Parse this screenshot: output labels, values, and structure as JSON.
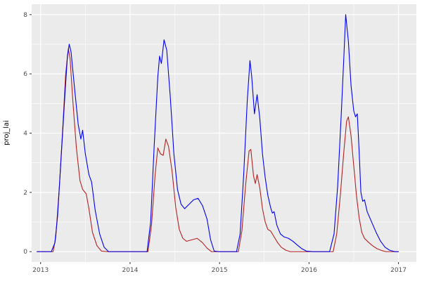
{
  "figure": {
    "background": "#FFFFFF",
    "panel_background": "#EBEBEB",
    "grid_major_color": "#FFFFFF",
    "grid_minor_color": "#FFFFFF",
    "axis_text_color": "#4D4D4D",
    "axis_title_color": "#000000",
    "tick_color": "#333333"
  },
  "chart_data": {
    "type": "line",
    "title": "",
    "xlabel": "",
    "ylabel": "proj_lai",
    "xlim": [
      2012.9,
      2017.2
    ],
    "ylim": [
      -0.35,
      8.35
    ],
    "x_ticks": [
      2013,
      2014,
      2015,
      2016,
      2017
    ],
    "x_tick_labels": [
      "2013",
      "2014",
      "2015",
      "2016",
      "2017"
    ],
    "x_minor_ticks": [
      2013.5,
      2014.5,
      2015.5,
      2016.5
    ],
    "y_ticks": [
      0,
      2,
      4,
      6,
      8
    ],
    "y_tick_labels": [
      "0",
      "2",
      "4",
      "6",
      "8"
    ],
    "y_minor_ticks": [
      1,
      3,
      5,
      7
    ],
    "grid": true,
    "legend": "none",
    "series": [
      {
        "name": "red-line",
        "color": "#B22222",
        "width": 1.1,
        "points": [
          [
            2012.96,
            0
          ],
          [
            2013.08,
            0
          ],
          [
            2013.14,
            0
          ],
          [
            2013.17,
            0.5
          ],
          [
            2013.21,
            2.2
          ],
          [
            2013.25,
            4.3
          ],
          [
            2013.28,
            6.0
          ],
          [
            2013.31,
            6.85
          ],
          [
            2013.33,
            6.5
          ],
          [
            2013.36,
            5.1
          ],
          [
            2013.4,
            3.5
          ],
          [
            2013.44,
            2.4
          ],
          [
            2013.47,
            2.1
          ],
          [
            2013.51,
            1.95
          ],
          [
            2013.54,
            1.45
          ],
          [
            2013.58,
            0.65
          ],
          [
            2013.63,
            0.2
          ],
          [
            2013.68,
            0.02
          ],
          [
            2013.75,
            0
          ],
          [
            2014.0,
            0
          ],
          [
            2014.15,
            0
          ],
          [
            2014.2,
            0
          ],
          [
            2014.24,
            0.9
          ],
          [
            2014.28,
            2.6
          ],
          [
            2014.31,
            3.5
          ],
          [
            2014.34,
            3.3
          ],
          [
            2014.37,
            3.25
          ],
          [
            2014.4,
            3.8
          ],
          [
            2014.43,
            3.55
          ],
          [
            2014.47,
            2.7
          ],
          [
            2014.51,
            1.5
          ],
          [
            2014.55,
            0.75
          ],
          [
            2014.59,
            0.45
          ],
          [
            2014.63,
            0.35
          ],
          [
            2014.69,
            0.4
          ],
          [
            2014.75,
            0.45
          ],
          [
            2014.81,
            0.3
          ],
          [
            2014.86,
            0.12
          ],
          [
            2014.91,
            0
          ],
          [
            2015.0,
            0
          ],
          [
            2015.15,
            0
          ],
          [
            2015.21,
            0
          ],
          [
            2015.25,
            0.7
          ],
          [
            2015.29,
            2.2
          ],
          [
            2015.33,
            3.4
          ],
          [
            2015.35,
            3.45
          ],
          [
            2015.38,
            2.55
          ],
          [
            2015.4,
            2.3
          ],
          [
            2015.42,
            2.6
          ],
          [
            2015.45,
            2.15
          ],
          [
            2015.48,
            1.45
          ],
          [
            2015.51,
            1.0
          ],
          [
            2015.54,
            0.75
          ],
          [
            2015.57,
            0.7
          ],
          [
            2015.61,
            0.5
          ],
          [
            2015.65,
            0.3
          ],
          [
            2015.69,
            0.15
          ],
          [
            2015.74,
            0.05
          ],
          [
            2015.79,
            0
          ],
          [
            2016.0,
            0
          ],
          [
            2016.2,
            0
          ],
          [
            2016.27,
            0
          ],
          [
            2016.31,
            0.6
          ],
          [
            2016.35,
            1.9
          ],
          [
            2016.39,
            3.4
          ],
          [
            2016.42,
            4.4
          ],
          [
            2016.44,
            4.55
          ],
          [
            2016.47,
            3.9
          ],
          [
            2016.5,
            2.9
          ],
          [
            2016.53,
            1.9
          ],
          [
            2016.56,
            1.15
          ],
          [
            2016.59,
            0.65
          ],
          [
            2016.62,
            0.45
          ],
          [
            2016.66,
            0.33
          ],
          [
            2016.71,
            0.2
          ],
          [
            2016.76,
            0.1
          ],
          [
            2016.81,
            0.04
          ],
          [
            2016.86,
            0
          ],
          [
            2017.0,
            0
          ]
        ]
      },
      {
        "name": "blue-line",
        "color": "#0000EE",
        "width": 1.1,
        "points": [
          [
            2012.96,
            0
          ],
          [
            2013.05,
            0
          ],
          [
            2013.12,
            0
          ],
          [
            2013.16,
            0.3
          ],
          [
            2013.19,
            1.2
          ],
          [
            2013.23,
            3.2
          ],
          [
            2013.27,
            5.2
          ],
          [
            2013.3,
            6.6
          ],
          [
            2013.32,
            7.0
          ],
          [
            2013.34,
            6.75
          ],
          [
            2013.38,
            5.5
          ],
          [
            2013.42,
            4.3
          ],
          [
            2013.45,
            3.8
          ],
          [
            2013.47,
            4.1
          ],
          [
            2013.5,
            3.3
          ],
          [
            2013.54,
            2.6
          ],
          [
            2013.57,
            2.35
          ],
          [
            2013.61,
            1.4
          ],
          [
            2013.66,
            0.6
          ],
          [
            2013.71,
            0.15
          ],
          [
            2013.76,
            0
          ],
          [
            2013.95,
            0
          ],
          [
            2014.1,
            0
          ],
          [
            2014.19,
            0
          ],
          [
            2014.23,
            1.0
          ],
          [
            2014.27,
            3.6
          ],
          [
            2014.31,
            5.9
          ],
          [
            2014.33,
            6.6
          ],
          [
            2014.35,
            6.35
          ],
          [
            2014.38,
            7.15
          ],
          [
            2014.41,
            6.8
          ],
          [
            2014.45,
            5.2
          ],
          [
            2014.49,
            3.3
          ],
          [
            2014.53,
            2.1
          ],
          [
            2014.57,
            1.6
          ],
          [
            2014.61,
            1.45
          ],
          [
            2014.66,
            1.6
          ],
          [
            2014.71,
            1.75
          ],
          [
            2014.76,
            1.8
          ],
          [
            2014.81,
            1.55
          ],
          [
            2014.86,
            1.1
          ],
          [
            2014.9,
            0.4
          ],
          [
            2014.94,
            0.02
          ],
          [
            2015.0,
            0
          ],
          [
            2015.12,
            0
          ],
          [
            2015.19,
            0
          ],
          [
            2015.23,
            0.6
          ],
          [
            2015.27,
            2.6
          ],
          [
            2015.31,
            5.1
          ],
          [
            2015.34,
            6.45
          ],
          [
            2015.36,
            5.9
          ],
          [
            2015.39,
            4.65
          ],
          [
            2015.42,
            5.3
          ],
          [
            2015.45,
            4.5
          ],
          [
            2015.48,
            3.3
          ],
          [
            2015.51,
            2.5
          ],
          [
            2015.54,
            1.9
          ],
          [
            2015.57,
            1.5
          ],
          [
            2015.59,
            1.3
          ],
          [
            2015.61,
            1.35
          ],
          [
            2015.64,
            0.9
          ],
          [
            2015.68,
            0.6
          ],
          [
            2015.72,
            0.5
          ],
          [
            2015.77,
            0.45
          ],
          [
            2015.82,
            0.35
          ],
          [
            2015.87,
            0.22
          ],
          [
            2015.92,
            0.1
          ],
          [
            2015.97,
            0.02
          ],
          [
            2016.05,
            0
          ],
          [
            2016.15,
            0
          ],
          [
            2016.23,
            0
          ],
          [
            2016.28,
            0.6
          ],
          [
            2016.32,
            2.2
          ],
          [
            2016.36,
            4.6
          ],
          [
            2016.39,
            6.6
          ],
          [
            2016.41,
            8.0
          ],
          [
            2016.44,
            7.1
          ],
          [
            2016.47,
            5.6
          ],
          [
            2016.5,
            4.75
          ],
          [
            2016.52,
            4.55
          ],
          [
            2016.54,
            4.65
          ],
          [
            2016.56,
            3.4
          ],
          [
            2016.58,
            2.0
          ],
          [
            2016.6,
            1.7
          ],
          [
            2016.62,
            1.75
          ],
          [
            2016.65,
            1.35
          ],
          [
            2016.7,
            1.0
          ],
          [
            2016.75,
            0.65
          ],
          [
            2016.8,
            0.35
          ],
          [
            2016.85,
            0.15
          ],
          [
            2016.9,
            0.05
          ],
          [
            2016.96,
            0
          ],
          [
            2017.0,
            0
          ]
        ]
      }
    ]
  }
}
